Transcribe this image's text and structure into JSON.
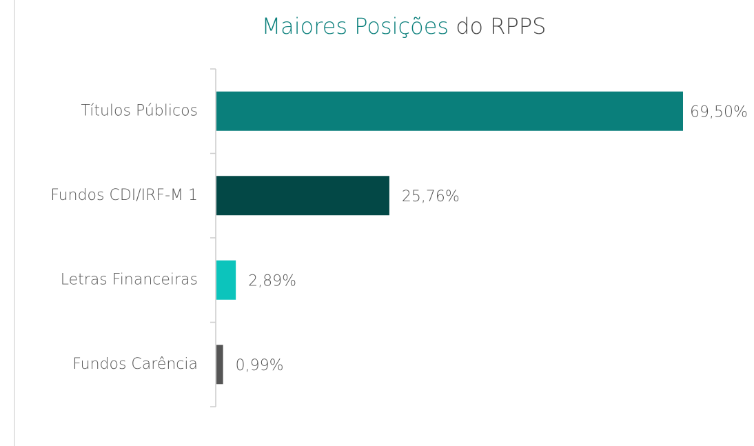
{
  "chart_data": {
    "type": "bar",
    "orientation": "horizontal",
    "title": {
      "highlight": "Maiores Posições",
      "rest": "do RPPS"
    },
    "categories": [
      "Títulos Públicos",
      "Fundos CDI/IRF-M 1",
      "Letras Financeiras",
      "Fundos Carência"
    ],
    "values": [
      69.5,
      25.76,
      2.89,
      0.99
    ],
    "value_labels": [
      "69,50%",
      "25,76%",
      "2,89%",
      "0,99%"
    ],
    "colors": [
      "#0a7f7b",
      "#034846",
      "#0cc4bc",
      "#555555"
    ]
  }
}
